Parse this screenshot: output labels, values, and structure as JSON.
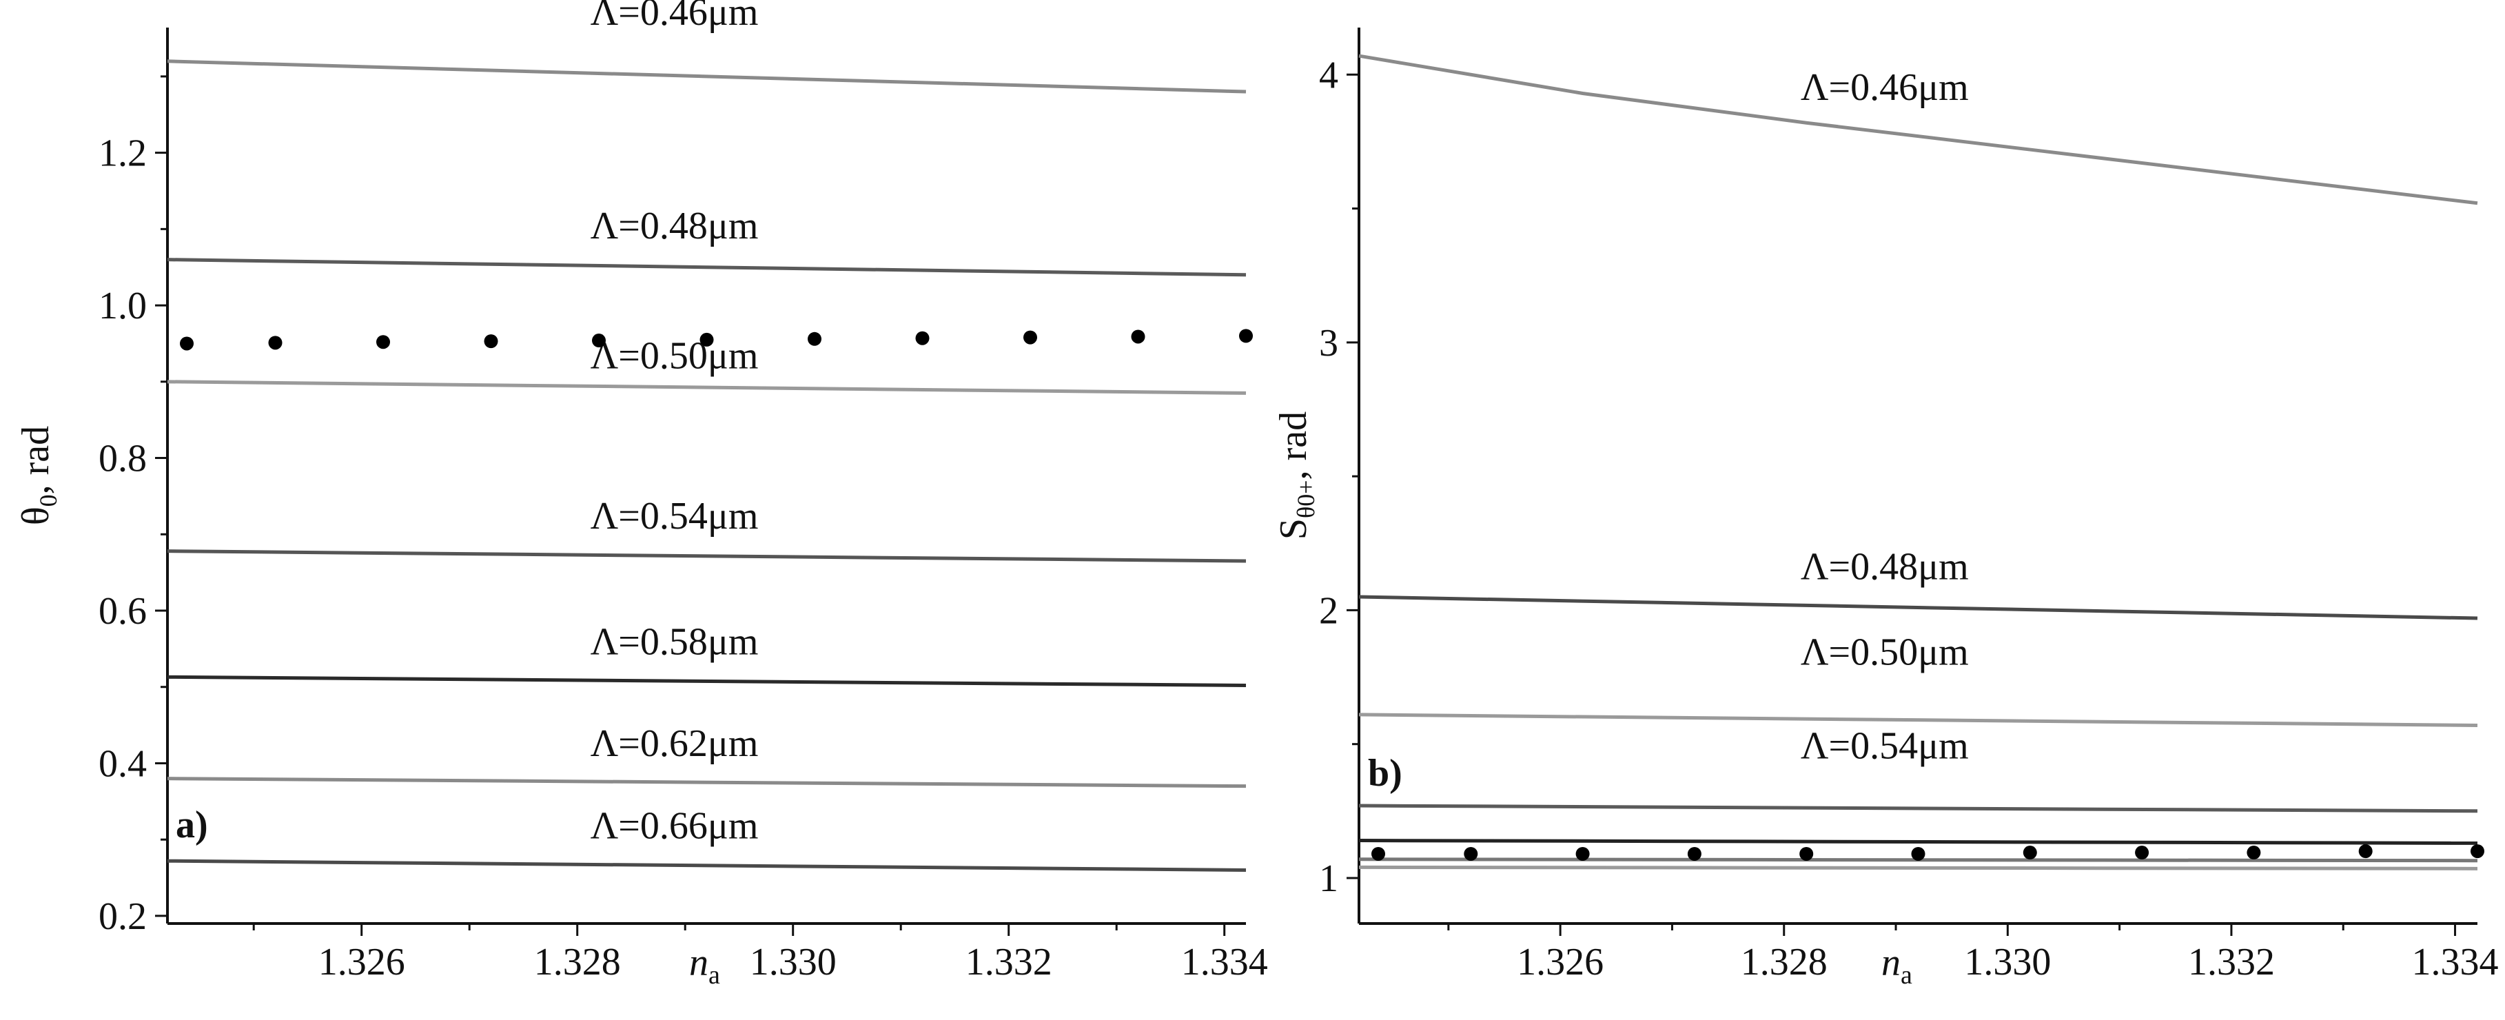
{
  "chart_data": [
    {
      "type": "line",
      "panel_tag": "a)",
      "xlabel": "n",
      "xlabel_sub": "a",
      "ylabel": "θ",
      "ylabel_sub": "0",
      "ylabel_rest": ", rad",
      "xlim": [
        1.3242,
        1.3342
      ],
      "ylim": [
        0.19,
        1.355
      ],
      "xticks": [
        1.326,
        1.328,
        1.33,
        1.332,
        1.334
      ],
      "xtick_labels": [
        "1.326",
        "1.328",
        "1.330",
        "1.332",
        "1.334"
      ],
      "yticks": [
        0.2,
        0.4,
        0.6,
        0.8,
        1.0,
        1.2
      ],
      "ytick_labels": [
        "0.2",
        "0.4",
        "0.6",
        "0.8",
        "1.0",
        "1.2"
      ],
      "grid": false,
      "series": [
        {
          "name": "Λ=0.46μm",
          "x": [
            1.3242,
            1.3342
          ],
          "y": [
            1.32,
            1.28
          ],
          "color": "#8a8a8a",
          "label_x": 1.3289,
          "label_y": 1.355
        },
        {
          "name": "Λ=0.48μm",
          "x": [
            1.3242,
            1.3342
          ],
          "y": [
            1.06,
            1.04
          ],
          "color": "#5a5a5a",
          "label_x": 1.3289,
          "label_y": 1.075
        },
        {
          "name": "Λ=0.50μm",
          "x": [
            1.3242,
            1.3342
          ],
          "y": [
            0.9,
            0.885
          ],
          "color": "#9a9a9a",
          "label_x": 1.3289,
          "label_y": 0.905
        },
        {
          "name": "Λ=0.54μm",
          "x": [
            1.3242,
            1.3342
          ],
          "y": [
            0.678,
            0.665
          ],
          "color": "#555555",
          "label_x": 1.3289,
          "label_y": 0.695
        },
        {
          "name": "Λ=0.58μm",
          "x": [
            1.3242,
            1.3342
          ],
          "y": [
            0.513,
            0.502
          ],
          "color": "#2a2a2a",
          "label_x": 1.3289,
          "label_y": 0.53
        },
        {
          "name": "Λ=0.62μm",
          "x": [
            1.3242,
            1.3342
          ],
          "y": [
            0.38,
            0.37
          ],
          "color": "#8a8a8a",
          "label_x": 1.3289,
          "label_y": 0.397
        },
        {
          "name": "Λ=0.66μm",
          "x": [
            1.3242,
            1.3342
          ],
          "y": [
            0.272,
            0.26
          ],
          "color": "#4a4a4a",
          "label_x": 1.3289,
          "label_y": 0.289
        }
      ],
      "points": {
        "x": [
          1.3242,
          1.3252,
          1.3262,
          1.3272,
          1.3282,
          1.3292,
          1.3302,
          1.3312,
          1.3322,
          1.3332,
          1.3342
        ],
        "y": [
          0.95,
          0.951,
          0.952,
          0.953,
          0.954,
          0.955,
          0.956,
          0.957,
          0.958,
          0.959,
          0.96
        ]
      }
    },
    {
      "type": "line",
      "panel_tag": "b)",
      "xlabel": "n",
      "xlabel_sub": "a",
      "ylabel": "S",
      "ylabel_sub": "θ0+",
      "ylabel_rest": ", rad",
      "xlim": [
        1.3242,
        1.3342
      ],
      "ylim": [
        0.83,
        4.15
      ],
      "xticks": [
        1.326,
        1.328,
        1.33,
        1.332,
        1.334
      ],
      "xtick_labels": [
        "1.326",
        "1.328",
        "1.330",
        "1.332",
        "1.334"
      ],
      "yticks": [
        1,
        2,
        3,
        4
      ],
      "ytick_labels": [
        "1",
        "2",
        "3",
        "4"
      ],
      "grid": false,
      "series": [
        {
          "name": "Λ=0.46μm",
          "x": [
            1.3242,
            1.3262,
            1.3282,
            1.3302,
            1.3322,
            1.3342
          ],
          "y": [
            4.07,
            3.93,
            3.82,
            3.72,
            3.62,
            3.52
          ],
          "color": "#8a8a8a",
          "label_x": 1.3289,
          "label_y": 3.87
        },
        {
          "name": "Λ=0.48μm",
          "x": [
            1.3242,
            1.3342
          ],
          "y": [
            2.05,
            1.97
          ],
          "color": "#4a4a4a",
          "label_x": 1.3289,
          "label_y": 2.08
        },
        {
          "name": "Λ=0.50μm",
          "x": [
            1.3242,
            1.3342
          ],
          "y": [
            1.61,
            1.57
          ],
          "color": "#9a9a9a",
          "label_x": 1.3289,
          "label_y": 1.76
        },
        {
          "name": "Λ=0.54μm",
          "x": [
            1.3242,
            1.3342
          ],
          "y": [
            1.27,
            1.25
          ],
          "color": "#5a5a5a",
          "label_x": 1.3289,
          "label_y": 1.41
        },
        {
          "name": "",
          "x": [
            1.3242,
            1.3342
          ],
          "y": [
            1.14,
            1.13
          ],
          "color": "#222222"
        },
        {
          "name": "",
          "x": [
            1.3242,
            1.3342
          ],
          "y": [
            1.07,
            1.065
          ],
          "color": "#777777"
        },
        {
          "name": "",
          "x": [
            1.3242,
            1.3342
          ],
          "y": [
            1.04,
            1.035
          ],
          "color": "#9a9a9a"
        }
      ],
      "points": {
        "x": [
          1.3242,
          1.3252,
          1.3262,
          1.3272,
          1.3282,
          1.3292,
          1.3302,
          1.3312,
          1.3322,
          1.3332,
          1.3342
        ],
        "y": [
          1.09,
          1.09,
          1.09,
          1.09,
          1.09,
          1.09,
          1.095,
          1.095,
          1.095,
          1.1,
          1.1
        ]
      }
    }
  ]
}
